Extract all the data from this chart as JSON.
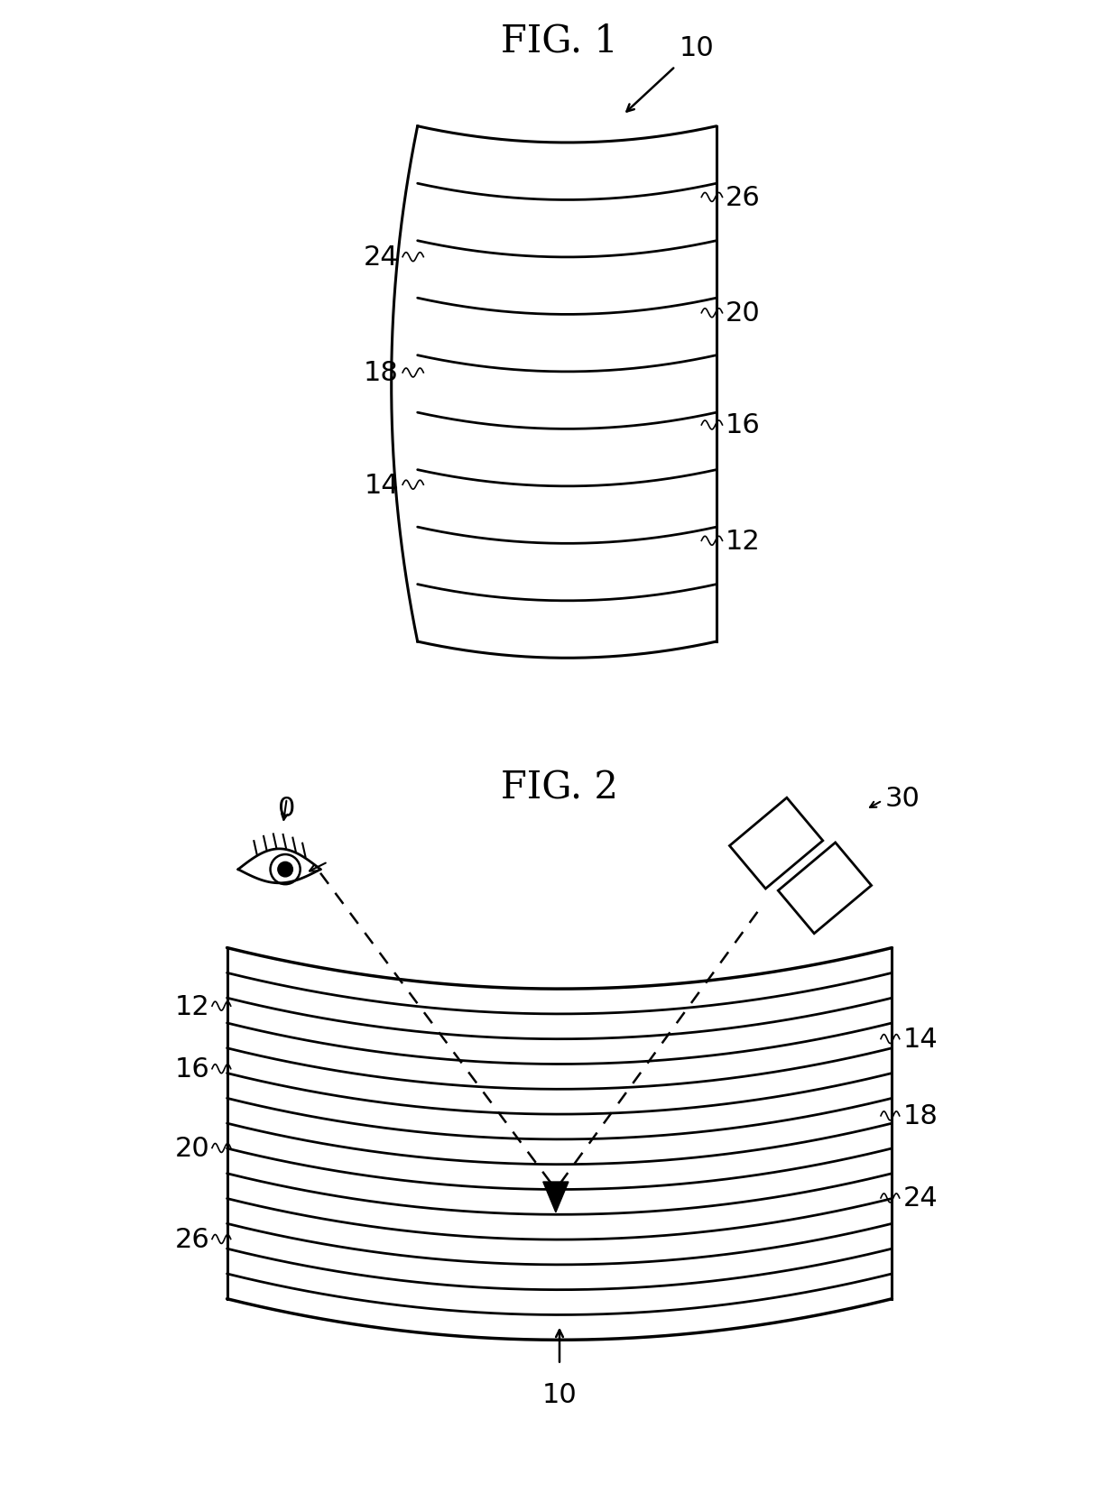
{
  "fig1_title": "FIG. 1",
  "fig2_title": "FIG. 2",
  "background_color": "#ffffff",
  "line_color": "#000000",
  "fig1_arrow_label": "10",
  "fig2_bottom_label": "10",
  "fig1_left_labels": [
    [
      "24",
      6.55
    ],
    [
      "18",
      5.0
    ],
    [
      "14",
      3.5
    ]
  ],
  "fig1_right_labels": [
    [
      "26",
      7.35
    ],
    [
      "20",
      5.8
    ],
    [
      "16",
      4.3
    ],
    [
      "12",
      2.75
    ]
  ],
  "fig2_left_labels": [
    [
      "12",
      6.52
    ],
    [
      "16",
      5.68
    ],
    [
      "20",
      4.62
    ],
    [
      "26",
      3.4
    ]
  ],
  "fig2_right_labels": [
    [
      "14",
      6.08
    ],
    [
      "18",
      5.05
    ],
    [
      "24",
      3.95
    ]
  ],
  "eye_label": "0",
  "projector_label": "30",
  "title_fontsize": 30,
  "label_fontsize": 22
}
